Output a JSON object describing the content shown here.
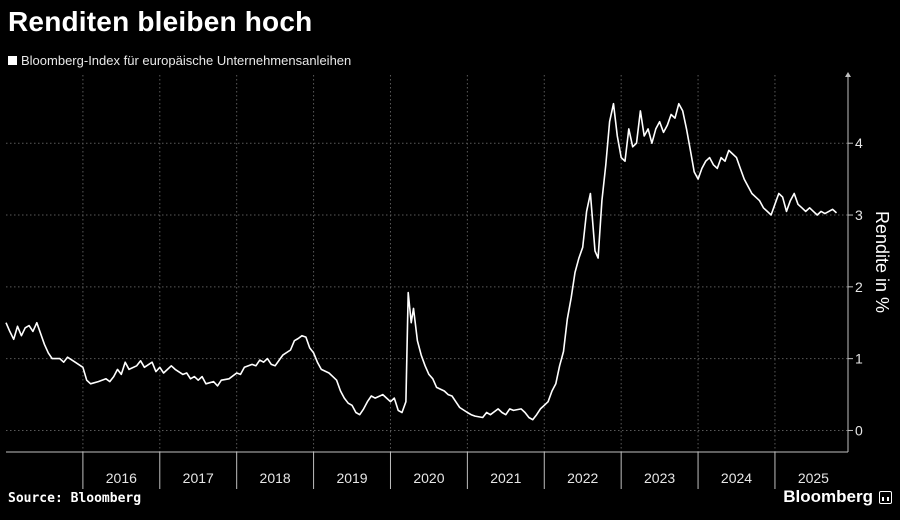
{
  "title": "Renditen bleiben hoch",
  "source": "Source: Bloomberg",
  "brand": "Bloomberg",
  "chart_data": {
    "type": "line",
    "title": "Renditen bleiben hoch",
    "ylabel": "Rendite in %",
    "xlabel": "",
    "ylim": [
      -0.3,
      4.95
    ],
    "yticks": [
      0,
      1,
      2,
      3,
      4
    ],
    "xlim": [
      2015.0,
      2025.95
    ],
    "year_labels": [
      "2016",
      "2017",
      "2018",
      "2019",
      "2020",
      "2021",
      "2022",
      "2023",
      "2024",
      "2025"
    ],
    "grid": true,
    "legend": "top-left",
    "series": [
      {
        "name": "Bloomberg-Index für europäische Unternehmensanleihen",
        "color": "#ffffff",
        "points": [
          [
            2015.0,
            1.5
          ],
          [
            2015.05,
            1.38
          ],
          [
            2015.1,
            1.27
          ],
          [
            2015.15,
            1.45
          ],
          [
            2015.2,
            1.32
          ],
          [
            2015.25,
            1.43
          ],
          [
            2015.3,
            1.46
          ],
          [
            2015.35,
            1.38
          ],
          [
            2015.4,
            1.5
          ],
          [
            2015.45,
            1.35
          ],
          [
            2015.5,
            1.2
          ],
          [
            2015.55,
            1.08
          ],
          [
            2015.6,
            1.0
          ],
          [
            2015.7,
            1.0
          ],
          [
            2015.75,
            0.95
          ],
          [
            2015.8,
            1.02
          ],
          [
            2015.9,
            0.95
          ],
          [
            2016.0,
            0.88
          ],
          [
            2016.05,
            0.7
          ],
          [
            2016.1,
            0.65
          ],
          [
            2016.2,
            0.68
          ],
          [
            2016.3,
            0.72
          ],
          [
            2016.35,
            0.68
          ],
          [
            2016.4,
            0.75
          ],
          [
            2016.45,
            0.85
          ],
          [
            2016.5,
            0.78
          ],
          [
            2016.55,
            0.95
          ],
          [
            2016.6,
            0.85
          ],
          [
            2016.7,
            0.9
          ],
          [
            2016.75,
            0.97
          ],
          [
            2016.8,
            0.88
          ],
          [
            2016.9,
            0.95
          ],
          [
            2016.95,
            0.82
          ],
          [
            2017.0,
            0.88
          ],
          [
            2017.05,
            0.8
          ],
          [
            2017.1,
            0.85
          ],
          [
            2017.15,
            0.9
          ],
          [
            2017.2,
            0.85
          ],
          [
            2017.3,
            0.78
          ],
          [
            2017.35,
            0.8
          ],
          [
            2017.4,
            0.72
          ],
          [
            2017.45,
            0.75
          ],
          [
            2017.5,
            0.7
          ],
          [
            2017.55,
            0.75
          ],
          [
            2017.6,
            0.65
          ],
          [
            2017.7,
            0.68
          ],
          [
            2017.75,
            0.62
          ],
          [
            2017.8,
            0.7
          ],
          [
            2017.9,
            0.72
          ],
          [
            2018.0,
            0.8
          ],
          [
            2018.05,
            0.78
          ],
          [
            2018.1,
            0.88
          ],
          [
            2018.2,
            0.92
          ],
          [
            2018.25,
            0.9
          ],
          [
            2018.3,
            0.98
          ],
          [
            2018.35,
            0.95
          ],
          [
            2018.4,
            1.0
          ],
          [
            2018.45,
            0.92
          ],
          [
            2018.5,
            0.9
          ],
          [
            2018.6,
            1.05
          ],
          [
            2018.7,
            1.12
          ],
          [
            2018.75,
            1.25
          ],
          [
            2018.8,
            1.28
          ],
          [
            2018.85,
            1.32
          ],
          [
            2018.9,
            1.3
          ],
          [
            2018.95,
            1.15
          ],
          [
            2019.0,
            1.08
          ],
          [
            2019.05,
            0.95
          ],
          [
            2019.1,
            0.85
          ],
          [
            2019.2,
            0.8
          ],
          [
            2019.25,
            0.75
          ],
          [
            2019.3,
            0.7
          ],
          [
            2019.35,
            0.55
          ],
          [
            2019.4,
            0.45
          ],
          [
            2019.45,
            0.38
          ],
          [
            2019.5,
            0.35
          ],
          [
            2019.55,
            0.25
          ],
          [
            2019.6,
            0.22
          ],
          [
            2019.65,
            0.3
          ],
          [
            2019.7,
            0.4
          ],
          [
            2019.75,
            0.48
          ],
          [
            2019.8,
            0.45
          ],
          [
            2019.9,
            0.5
          ],
          [
            2019.95,
            0.45
          ],
          [
            2020.0,
            0.4
          ],
          [
            2020.05,
            0.45
          ],
          [
            2020.1,
            0.28
          ],
          [
            2020.15,
            0.25
          ],
          [
            2020.2,
            0.4
          ],
          [
            2020.23,
            1.92
          ],
          [
            2020.27,
            1.5
          ],
          [
            2020.3,
            1.7
          ],
          [
            2020.35,
            1.25
          ],
          [
            2020.4,
            1.05
          ],
          [
            2020.45,
            0.9
          ],
          [
            2020.5,
            0.78
          ],
          [
            2020.55,
            0.72
          ],
          [
            2020.6,
            0.6
          ],
          [
            2020.7,
            0.55
          ],
          [
            2020.75,
            0.5
          ],
          [
            2020.8,
            0.48
          ],
          [
            2020.85,
            0.4
          ],
          [
            2020.9,
            0.32
          ],
          [
            2021.0,
            0.25
          ],
          [
            2021.05,
            0.22
          ],
          [
            2021.1,
            0.2
          ],
          [
            2021.2,
            0.18
          ],
          [
            2021.25,
            0.25
          ],
          [
            2021.3,
            0.22
          ],
          [
            2021.4,
            0.3
          ],
          [
            2021.45,
            0.25
          ],
          [
            2021.5,
            0.22
          ],
          [
            2021.55,
            0.3
          ],
          [
            2021.6,
            0.28
          ],
          [
            2021.7,
            0.3
          ],
          [
            2021.75,
            0.25
          ],
          [
            2021.8,
            0.18
          ],
          [
            2021.85,
            0.15
          ],
          [
            2021.9,
            0.22
          ],
          [
            2021.95,
            0.3
          ],
          [
            2022.0,
            0.35
          ],
          [
            2022.05,
            0.4
          ],
          [
            2022.1,
            0.55
          ],
          [
            2022.15,
            0.65
          ],
          [
            2022.2,
            0.9
          ],
          [
            2022.25,
            1.1
          ],
          [
            2022.3,
            1.55
          ],
          [
            2022.35,
            1.85
          ],
          [
            2022.4,
            2.2
          ],
          [
            2022.45,
            2.4
          ],
          [
            2022.5,
            2.55
          ],
          [
            2022.55,
            3.05
          ],
          [
            2022.6,
            3.3
          ],
          [
            2022.63,
            2.9
          ],
          [
            2022.66,
            2.5
          ],
          [
            2022.7,
            2.4
          ],
          [
            2022.75,
            3.2
          ],
          [
            2022.8,
            3.7
          ],
          [
            2022.85,
            4.3
          ],
          [
            2022.9,
            4.55
          ],
          [
            2022.95,
            4.1
          ],
          [
            2023.0,
            3.8
          ],
          [
            2023.05,
            3.75
          ],
          [
            2023.1,
            4.2
          ],
          [
            2023.15,
            3.95
          ],
          [
            2023.2,
            4.0
          ],
          [
            2023.25,
            4.45
          ],
          [
            2023.3,
            4.1
          ],
          [
            2023.35,
            4.2
          ],
          [
            2023.4,
            4.0
          ],
          [
            2023.45,
            4.2
          ],
          [
            2023.5,
            4.3
          ],
          [
            2023.55,
            4.15
          ],
          [
            2023.6,
            4.25
          ],
          [
            2023.65,
            4.4
          ],
          [
            2023.7,
            4.35
          ],
          [
            2023.75,
            4.55
          ],
          [
            2023.8,
            4.45
          ],
          [
            2023.85,
            4.2
          ],
          [
            2023.9,
            3.9
          ],
          [
            2023.95,
            3.6
          ],
          [
            2024.0,
            3.5
          ],
          [
            2024.05,
            3.65
          ],
          [
            2024.1,
            3.75
          ],
          [
            2024.15,
            3.8
          ],
          [
            2024.2,
            3.7
          ],
          [
            2024.25,
            3.65
          ],
          [
            2024.3,
            3.8
          ],
          [
            2024.35,
            3.75
          ],
          [
            2024.4,
            3.9
          ],
          [
            2024.45,
            3.85
          ],
          [
            2024.5,
            3.8
          ],
          [
            2024.55,
            3.65
          ],
          [
            2024.6,
            3.5
          ],
          [
            2024.65,
            3.4
          ],
          [
            2024.7,
            3.3
          ],
          [
            2024.75,
            3.25
          ],
          [
            2024.8,
            3.2
          ],
          [
            2024.85,
            3.1
          ],
          [
            2024.9,
            3.05
          ],
          [
            2024.95,
            3.0
          ],
          [
            2025.0,
            3.15
          ],
          [
            2025.05,
            3.3
          ],
          [
            2025.1,
            3.25
          ],
          [
            2025.15,
            3.05
          ],
          [
            2025.2,
            3.2
          ],
          [
            2025.25,
            3.3
          ],
          [
            2025.3,
            3.15
          ],
          [
            2025.35,
            3.1
          ],
          [
            2025.4,
            3.05
          ],
          [
            2025.45,
            3.1
          ],
          [
            2025.5,
            3.05
          ],
          [
            2025.55,
            3.0
          ],
          [
            2025.6,
            3.05
          ],
          [
            2025.65,
            3.02
          ],
          [
            2025.7,
            3.05
          ],
          [
            2025.75,
            3.08
          ],
          [
            2025.8,
            3.03
          ]
        ]
      }
    ]
  }
}
